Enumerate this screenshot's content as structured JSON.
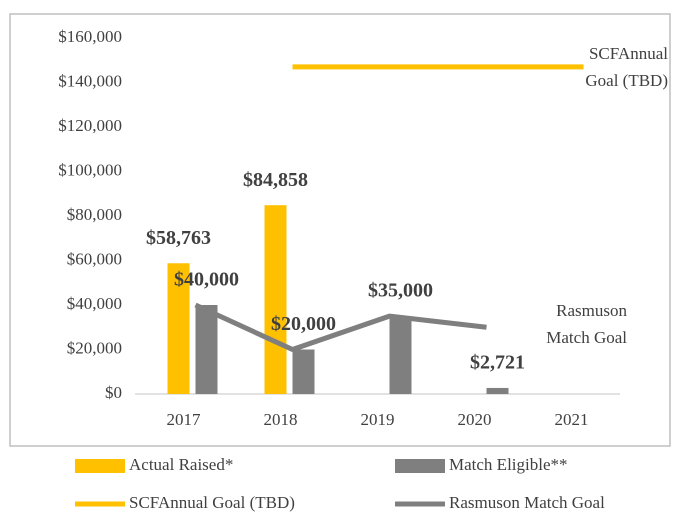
{
  "chart_data": {
    "type": "bar",
    "categories": [
      "2017",
      "2018",
      "2019",
      "2020",
      "2021"
    ],
    "series": [
      {
        "name": "Actual Raised*",
        "type": "bar",
        "color": "#ffc000",
        "values": [
          58763,
          84858,
          null,
          null,
          null
        ],
        "value_labels": [
          "$58,763",
          "$84,858",
          null,
          null,
          null
        ]
      },
      {
        "name": "Match Eligible**",
        "type": "bar",
        "color": "#7f7f7f",
        "values": [
          40000,
          20000,
          35000,
          2721,
          null
        ],
        "value_labels": [
          "$40,000",
          "$20,000",
          "$35,000",
          "$2,721",
          null
        ]
      },
      {
        "name": "SCFAnnual Goal (TBD)",
        "type": "line",
        "color": "#ffc000",
        "values": [
          null,
          147000,
          147000,
          147000,
          147000
        ]
      },
      {
        "name": "Rasmuson Match Goal",
        "type": "line",
        "color": "#7f7f7f",
        "values": [
          40000,
          20000,
          35000,
          30000,
          null
        ]
      }
    ],
    "annotations": [
      {
        "lines": [
          "SCFAnnual",
          "Goal (TBD)"
        ]
      },
      {
        "lines": [
          "Rasmuson",
          "Match Goal"
        ]
      }
    ],
    "ylim": [
      0,
      160000
    ],
    "yticks": [
      {
        "value": 0,
        "label": "$0"
      },
      {
        "value": 20000,
        "label": "$20,000"
      },
      {
        "value": 40000,
        "label": "$40,000"
      },
      {
        "value": 60000,
        "label": "$60,000"
      },
      {
        "value": 80000,
        "label": "$80,000"
      },
      {
        "value": 100000,
        "label": "$100,000"
      },
      {
        "value": 120000,
        "label": "$120,000"
      },
      {
        "value": 140000,
        "label": "$140,000"
      },
      {
        "value": 160000,
        "label": "$160,000"
      }
    ],
    "grid": false
  }
}
